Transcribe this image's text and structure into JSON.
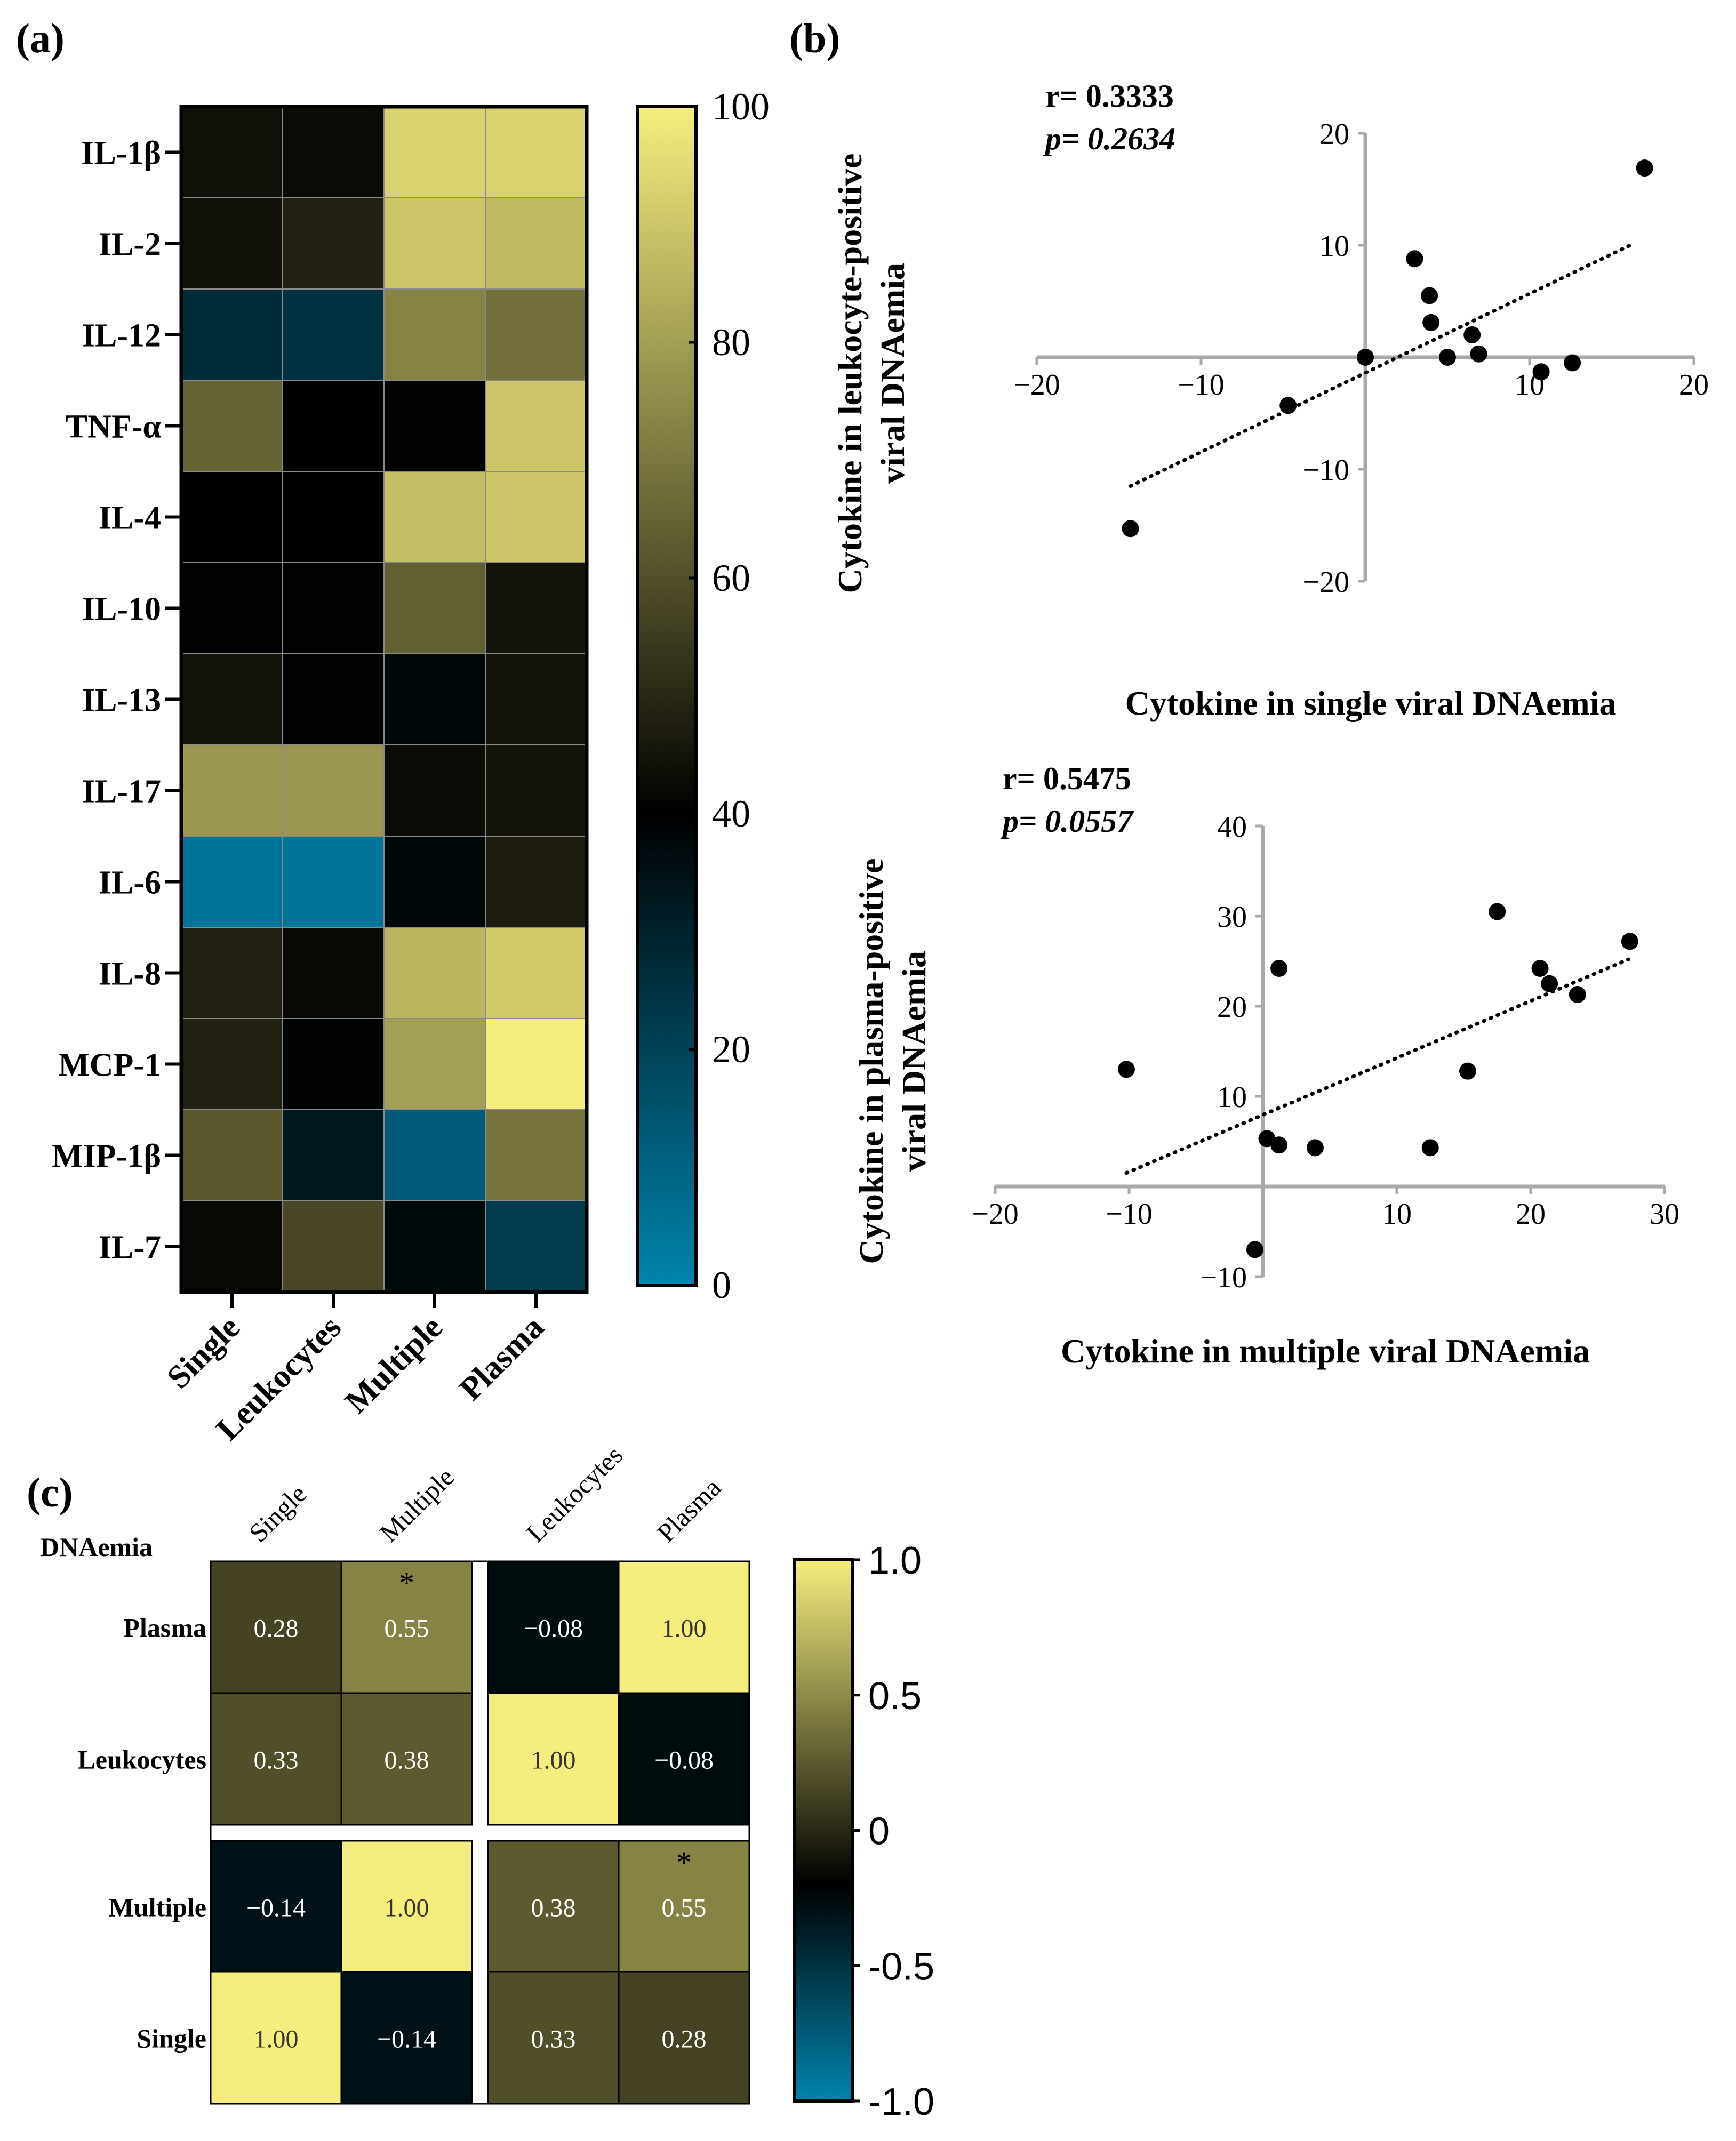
{
  "panels": {
    "a": "(a)",
    "b": "(b)",
    "c": "(c)"
  },
  "colorscale_a": {
    "stops": [
      "#0084ad",
      "#000000",
      "#f5ee7e"
    ],
    "ticks": [
      "100",
      "80",
      "60",
      "40",
      "20",
      "0"
    ]
  },
  "colorscale_c": {
    "ticks": [
      "1.0",
      "0.5",
      "0",
      "-0.5",
      "-1.0"
    ]
  },
  "chart_data": [
    {
      "type": "heatmap",
      "panel": "(a)",
      "rows": [
        "IL-1β",
        "IL-2",
        "IL-12",
        "TNF-α",
        "IL-4",
        "IL-10",
        "IL-13",
        "IL-17",
        "IL-6",
        "IL-8",
        "MCP-1",
        "MIP-1β",
        "IL-7"
      ],
      "columns": [
        "Single",
        "Leukocytes",
        "Multiple",
        "Plasma"
      ],
      "values": [
        [
          44,
          43,
          93,
          93
        ],
        [
          44,
          48,
          90,
          87
        ],
        [
          27,
          25,
          73,
          68
        ],
        [
          65,
          40,
          39,
          90
        ],
        [
          40,
          40,
          88,
          90
        ],
        [
          39,
          39,
          64,
          45
        ],
        [
          45,
          39,
          38,
          45
        ],
        [
          78,
          78,
          43,
          45
        ],
        [
          5,
          5,
          38,
          47
        ],
        [
          48,
          42,
          86,
          91
        ],
        [
          48,
          39,
          80,
          100
        ],
        [
          62,
          33,
          12,
          69
        ],
        [
          42,
          58,
          37,
          22
        ]
      ],
      "colorbar": {
        "min": 0,
        "max": 100
      }
    },
    {
      "type": "scatter",
      "panel": "(b)",
      "annotation_r": "r= 0.3333",
      "annotation_p": "p= 0.2634",
      "xlabel": "Cytokine in single viral DNAemia",
      "ylabel_line1": "Cytokine in leukocyte-positive",
      "ylabel_line2": "viral DNAemia",
      "xlim": [
        -20,
        20
      ],
      "ylim": [
        -20,
        20
      ],
      "xticks": [
        "−20",
        "−10",
        "10",
        "20"
      ],
      "yticks": [
        "20",
        "10",
        "−10",
        "−20"
      ],
      "points": [
        {
          "x": -14.3,
          "y": -15.3
        },
        {
          "x": -4.7,
          "y": -4.3
        },
        {
          "x": 0,
          "y": 0
        },
        {
          "x": 3,
          "y": 8.8
        },
        {
          "x": 3.9,
          "y": 5.5
        },
        {
          "x": 4,
          "y": 3.1
        },
        {
          "x": 5,
          "y": 0
        },
        {
          "x": 6.5,
          "y": 2
        },
        {
          "x": 6.9,
          "y": 0.3
        },
        {
          "x": 10.7,
          "y": -1.3
        },
        {
          "x": 12.6,
          "y": -0.5
        },
        {
          "x": 17,
          "y": 16.9
        }
      ],
      "trendline": {
        "x": [
          -14.3,
          16.4
        ],
        "y": [
          -11.5,
          10.2
        ]
      }
    },
    {
      "type": "scatter",
      "panel": "(b)",
      "annotation_r": "r= 0.5475",
      "annotation_p": "p= 0.0557",
      "xlabel": "Cytokine in multiple viral DNAemia",
      "ylabel_line1": "Cytokine in plasma-positive",
      "ylabel_line2": "viral DNAemia",
      "xlim": [
        -20,
        30
      ],
      "ylim": [
        -10,
        40
      ],
      "xticks": [
        "−20",
        "−10",
        "10",
        "20",
        "30"
      ],
      "yticks": [
        "40",
        "30",
        "20",
        "10",
        "−10"
      ],
      "points": [
        {
          "x": -10.2,
          "y": 13
        },
        {
          "x": -0.6,
          "y": -7
        },
        {
          "x": 0.3,
          "y": 5.3
        },
        {
          "x": 1.2,
          "y": 4.6
        },
        {
          "x": 1.2,
          "y": 24.2
        },
        {
          "x": 3.9,
          "y": 4.3
        },
        {
          "x": 12.5,
          "y": 4.3
        },
        {
          "x": 15.3,
          "y": 12.8
        },
        {
          "x": 17.5,
          "y": 30.5
        },
        {
          "x": 20.7,
          "y": 24.2
        },
        {
          "x": 21.4,
          "y": 22.5
        },
        {
          "x": 23.5,
          "y": 21.3
        },
        {
          "x": 27.4,
          "y": 27.2
        }
      ],
      "trendline": {
        "x": [
          -10.2,
          27.3
        ],
        "y": [
          1.5,
          25.2
        ]
      }
    },
    {
      "type": "heatmap",
      "panel": "(c)",
      "corner_label": "DNAemia",
      "columns": [
        "Single",
        "Multiple",
        "Leukocytes",
        "Plasma"
      ],
      "rows": [
        "Plasma",
        "Leukocytes",
        "Multiple",
        "Single"
      ],
      "values": [
        [
          0.28,
          0.55,
          -0.08,
          1.0
        ],
        [
          0.33,
          0.38,
          1.0,
          -0.08
        ],
        [
          -0.14,
          1.0,
          0.38,
          0.55
        ],
        [
          1.0,
          -0.14,
          0.33,
          0.28
        ]
      ],
      "labels": [
        [
          "0.28",
          "0.55",
          "−0.08",
          "1.00"
        ],
        [
          "0.33",
          "0.38",
          "1.00",
          "−0.08"
        ],
        [
          "−0.14",
          "1.00",
          "0.38",
          "0.55"
        ],
        [
          "1.00",
          "−0.14",
          "0.33",
          "0.28"
        ]
      ],
      "significance": [
        [
          "",
          "*",
          "",
          ""
        ],
        [
          "",
          "",
          "",
          ""
        ],
        [
          "",
          "",
          "",
          "*"
        ],
        [
          "",
          "",
          "",
          ""
        ]
      ],
      "colorbar": {
        "min": -1.0,
        "max": 1.0
      }
    }
  ]
}
